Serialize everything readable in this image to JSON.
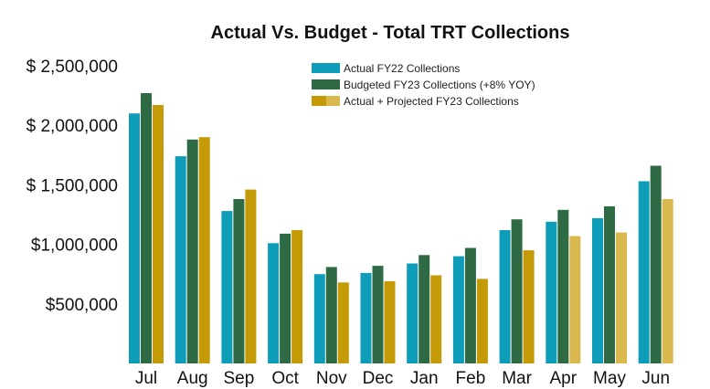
{
  "chart_data": {
    "type": "bar",
    "title": "Actual Vs. Budget - Total TRT Collections",
    "xlabel": "",
    "ylabel": "",
    "ylim": [
      0,
      2500000
    ],
    "grid": false,
    "legend_position": "top-center",
    "categories": [
      "Jul",
      "Aug",
      "Sep",
      "Oct",
      "Nov",
      "Dec",
      "Jan",
      "Feb",
      "Mar",
      "Apr",
      "May",
      "Jun"
    ],
    "ytick_values": [
      500000,
      1000000,
      1500000,
      2000000,
      2500000
    ],
    "ytick_labels": [
      "$500,000",
      "$1,000,000",
      "$ 1,500,000",
      "$ 2,000,000",
      "$ 2,500,000"
    ],
    "series": [
      {
        "name": "Actual FY22 Collections",
        "color": "#0E9DB8",
        "values": [
          2100000,
          1740000,
          1280000,
          1010000,
          750000,
          760000,
          840000,
          900000,
          1120000,
          1190000,
          1220000,
          1530000
        ]
      },
      {
        "name": "Budgeted FY23 Collections (+8% YOY)",
        "color": "#2E6B45",
        "values": [
          2270000,
          1880000,
          1380000,
          1090000,
          810000,
          820000,
          910000,
          970000,
          1210000,
          1290000,
          1320000,
          1660000
        ]
      },
      {
        "name": "Actual + Projected FY23 Collections",
        "color": "#C49A06",
        "projected_color": "#D9B84E",
        "values": [
          2170000,
          1900000,
          1460000,
          1120000,
          680000,
          690000,
          740000,
          710000,
          950000,
          1070000,
          1100000,
          1380000
        ],
        "projected_from_index": 9
      }
    ]
  }
}
